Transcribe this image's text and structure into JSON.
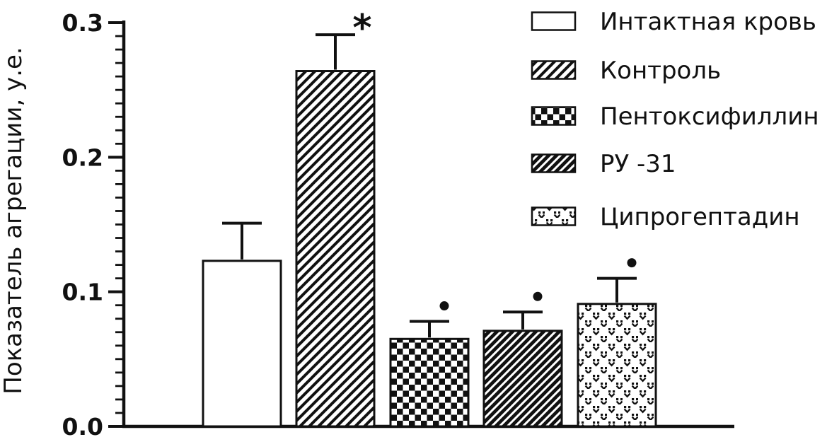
{
  "figure": {
    "background": "#ffffff",
    "ink_color": "#111111"
  },
  "chart_data": {
    "type": "bar",
    "title": "",
    "xlabel": "",
    "ylabel": "Показатель агрегации, у.е.",
    "ylim": [
      0,
      0.3
    ],
    "ytick_values": [
      0,
      0.1,
      0.2,
      0.3
    ],
    "ytick_labels": [
      "0.0",
      "0.1",
      "0.2",
      "0.3"
    ],
    "minor_tick_step": 0.01,
    "grid": false,
    "legend_position": "top-right",
    "categories": [
      "Интактная кровь",
      "Контроль",
      "Пентоксифиллин",
      "РУ -31",
      "Ципрогептадин"
    ],
    "values": [
      0.123,
      0.264,
      0.065,
      0.071,
      0.091
    ],
    "errors": [
      0.028,
      0.027,
      0.013,
      0.014,
      0.019
    ],
    "significance_markers": [
      "",
      "*",
      "•",
      "•",
      "•"
    ],
    "patterns": [
      "plain",
      "diagonal-hatch",
      "checkerboard",
      "dense-diagonal",
      "speckle"
    ],
    "legend": [
      {
        "label": "Интактная кровь",
        "pattern": "plain"
      },
      {
        "label": "Контроль",
        "pattern": "diagonal-hatch"
      },
      {
        "label": "Пентоксифиллин",
        "pattern": "checkerboard"
      },
      {
        "label": "РУ -31",
        "pattern": "dense-diagonal"
      },
      {
        "label": "Ципрогептадин",
        "pattern": "speckle"
      }
    ]
  }
}
